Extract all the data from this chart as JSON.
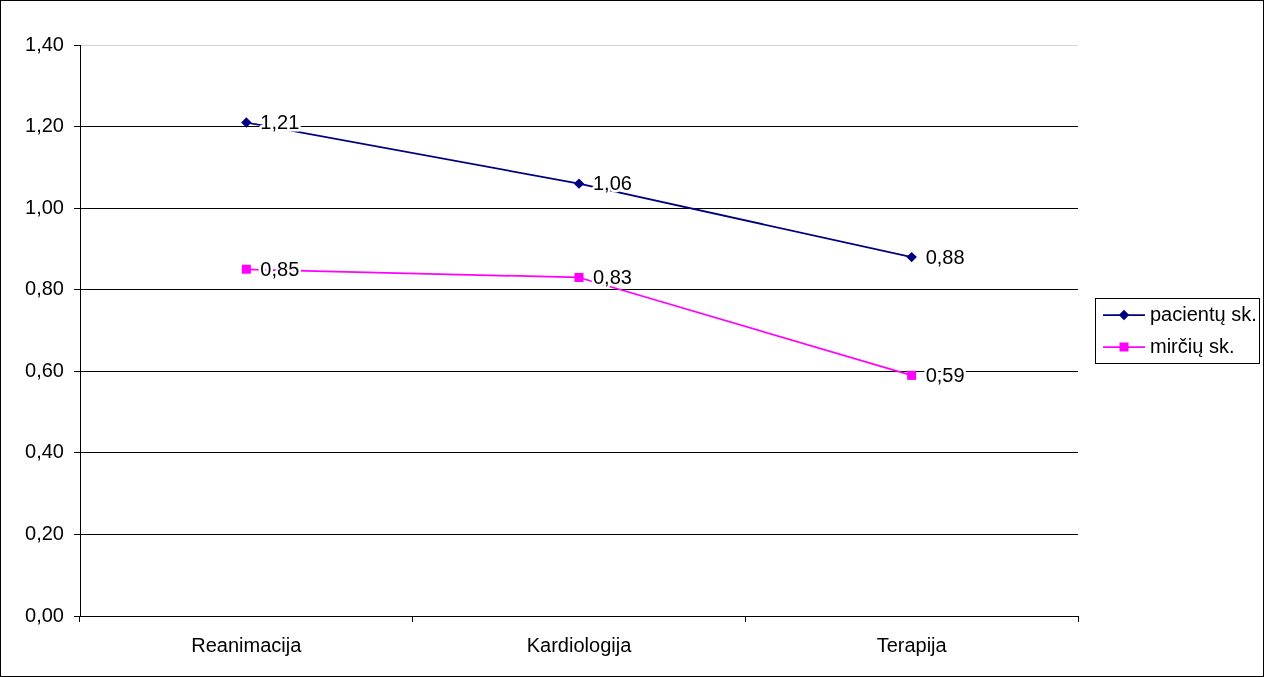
{
  "chart_data": {
    "type": "line",
    "categories": [
      "Reanimacija",
      "Kardiologija",
      "Terapija"
    ],
    "series": [
      {
        "name": "pacientų sk.",
        "color": "#000080",
        "marker": "diamond",
        "values": [
          1.21,
          1.06,
          0.88
        ],
        "value_labels": [
          "1,21",
          "1,06",
          "0,88"
        ]
      },
      {
        "name": "mirčių sk.",
        "color": "#ff00ff",
        "marker": "square",
        "values": [
          0.85,
          0.83,
          0.59
        ],
        "value_labels": [
          "0,85",
          "0,83",
          "0,59"
        ]
      }
    ],
    "ylim": [
      0,
      1.4
    ],
    "yticks": [
      {
        "value": 0,
        "label": "0,00"
      },
      {
        "value": 0.2,
        "label": "0,20"
      },
      {
        "value": 0.4,
        "label": "0,40"
      },
      {
        "value": 0.6,
        "label": "0,60"
      },
      {
        "value": 0.8,
        "label": "0,80"
      },
      {
        "value": 1,
        "label": "1,00"
      },
      {
        "value": 1.2,
        "label": "1,20"
      },
      {
        "value": 1.4,
        "label": "1,40"
      }
    ],
    "grid": "y",
    "legend": "right",
    "line_style": "solid"
  }
}
